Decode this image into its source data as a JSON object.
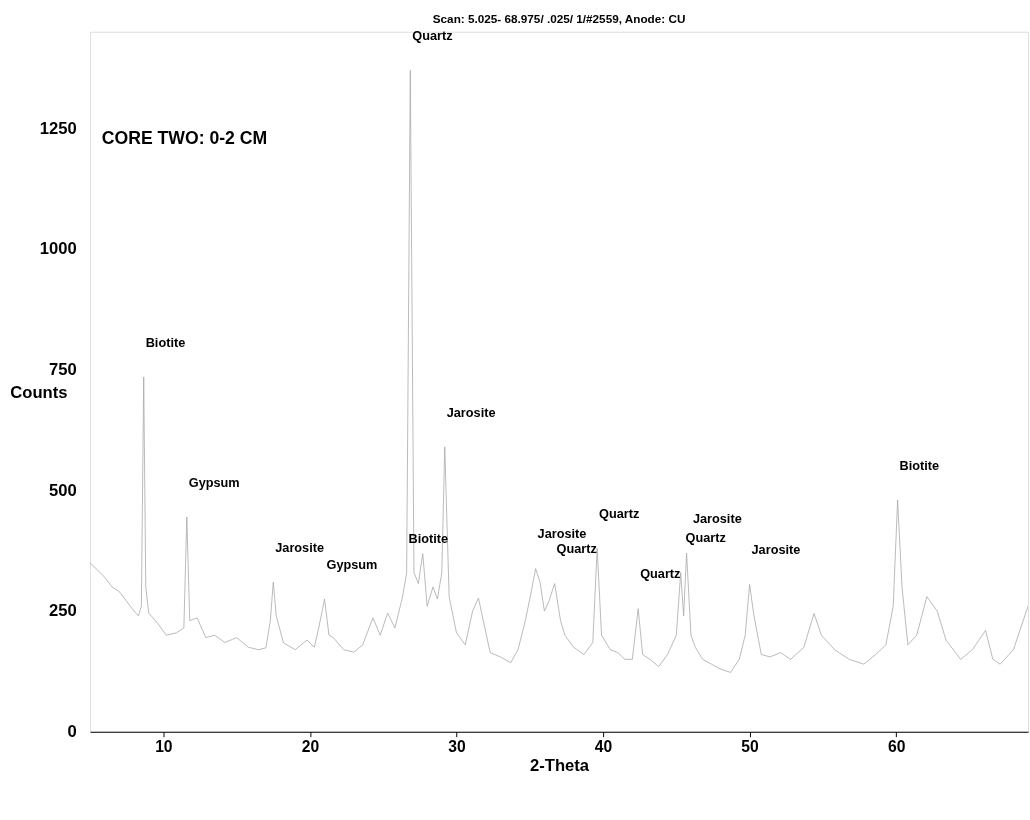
{
  "chart_data": {
    "type": "line",
    "title": "Scan: 5.025- 68.975/ .025/ 1/#2559, Anode: CU",
    "xlabel": "2-Theta",
    "ylabel": "Counts",
    "x": [
      5.0,
      5.5,
      6.0,
      6.5,
      7.0,
      7.5,
      8.0,
      8.3,
      8.5,
      8.66,
      8.8,
      9.0,
      9.6,
      10.2,
      10.9,
      11.4,
      11.6,
      11.8,
      12.3,
      12.9,
      13.5,
      14.2,
      15.0,
      15.8,
      16.5,
      17.0,
      17.3,
      17.5,
      17.7,
      18.2,
      19.0,
      19.8,
      20.3,
      20.6,
      21.0,
      21.3,
      21.6,
      22.3,
      23.0,
      23.6,
      24.3,
      24.8,
      25.3,
      25.8,
      26.3,
      26.6,
      26.85,
      27.1,
      27.4,
      27.7,
      28.0,
      28.4,
      28.7,
      29.0,
      29.2,
      29.5,
      30.0,
      30.6,
      31.1,
      31.5,
      32.3,
      33.0,
      33.7,
      34.2,
      34.7,
      35.1,
      35.4,
      35.7,
      36.0,
      36.3,
      36.7,
      37.1,
      37.4,
      38.0,
      38.7,
      39.3,
      39.6,
      39.9,
      40.5,
      41.0,
      41.5,
      42.0,
      42.4,
      42.7,
      43.2,
      43.8,
      44.4,
      45.0,
      45.3,
      45.5,
      45.7,
      46.0,
      46.3,
      46.8,
      47.4,
      48.0,
      48.7,
      49.3,
      49.7,
      50.0,
      50.3,
      50.8,
      51.4,
      52.1,
      52.8,
      53.7,
      54.4,
      54.9,
      55.8,
      56.8,
      57.8,
      58.6,
      59.3,
      59.8,
      60.1,
      60.4,
      60.8,
      61.4,
      62.1,
      62.8,
      63.4,
      64.4,
      65.2,
      66.1,
      66.6,
      67.1,
      68.0,
      69.0
    ],
    "values": [
      350,
      335,
      320,
      300,
      290,
      270,
      250,
      240,
      260,
      735,
      300,
      246,
      225,
      200,
      205,
      215,
      445,
      230,
      236,
      195,
      200,
      185,
      195,
      175,
      170,
      174,
      230,
      310,
      240,
      184,
      170,
      190,
      175,
      215,
      275,
      200,
      195,
      170,
      165,
      180,
      236,
      200,
      246,
      215,
      277,
      328,
      1370,
      330,
      307,
      369,
      260,
      300,
      275,
      330,
      590,
      280,
      205,
      180,
      250,
      277,
      164,
      155,
      143,
      170,
      230,
      290,
      338,
      310,
      250,
      270,
      307,
      230,
      200,
      175,
      160,
      185,
      380,
      200,
      170,
      164,
      150,
      150,
      255,
      160,
      150,
      135,
      160,
      200,
      330,
      240,
      370,
      200,
      175,
      150,
      140,
      130,
      123,
      150,
      200,
      305,
      240,
      160,
      155,
      164,
      150,
      175,
      245,
      200,
      170,
      150,
      140,
      160,
      180,
      260,
      480,
      300,
      180,
      200,
      280,
      250,
      190,
      150,
      170,
      210,
      150,
      140,
      170,
      260
    ],
    "color": "#a8a8a8",
    "xlim": [
      5,
      69
    ],
    "ylim": [
      0,
      1450
    ],
    "xticks": [
      10,
      20,
      30,
      40,
      50,
      60
    ],
    "yticks": [
      0,
      250,
      500,
      750,
      1000,
      1250
    ],
    "grid": false,
    "marker": "none",
    "line_style": "solid",
    "annotations": [
      "CORE TWO: 0-2 CM",
      {
        "text": "Biotite",
        "x": 8.66,
        "y": 735
      },
      {
        "text": "Gypsum",
        "x": 11.6,
        "y": 445
      },
      {
        "text": "Jarosite",
        "x": 17.5,
        "y": 310
      },
      {
        "text": "Gypsum",
        "x": 21.0,
        "y": 275
      },
      {
        "text": "Quartz",
        "x": 26.85,
        "y": 1370
      },
      {
        "text": "Biotite",
        "x": 26.6,
        "y": 328
      },
      {
        "text": "Jarosite",
        "x": 29.2,
        "y": 590
      },
      {
        "text": "Jarosite",
        "x": 35.4,
        "y": 338
      },
      {
        "text": "Quartz",
        "x": 36.7,
        "y": 307
      },
      {
        "text": "Quartz",
        "x": 39.6,
        "y": 380
      },
      {
        "text": "Quartz",
        "x": 42.4,
        "y": 255
      },
      {
        "text": "Quartz",
        "x": 45.5,
        "y": 330
      },
      {
        "text": "Jarosite",
        "x": 46.0,
        "y": 370
      },
      {
        "text": "Jarosite",
        "x": 50.0,
        "y": 305
      },
      {
        "text": "Biotite",
        "x": 60.1,
        "y": 480
      }
    ]
  }
}
